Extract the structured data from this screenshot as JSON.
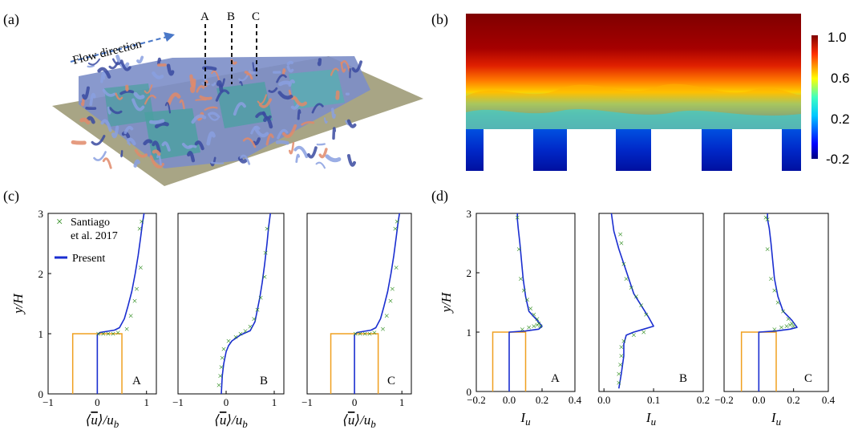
{
  "panels": {
    "a": {
      "label": "(a)",
      "flow_label": "Flow direction",
      "sections": [
        "A",
        "B",
        "C"
      ]
    },
    "b": {
      "label": "(b)",
      "colorbar": {
        "ticks": [
          "1.0",
          "0.6",
          "0.2",
          "-0.2"
        ],
        "min": -0.2,
        "max": 1.0
      }
    },
    "c": {
      "label": "(c)"
    },
    "d": {
      "label": "(d)"
    }
  },
  "legend": {
    "exp_line1": "Santiago",
    "exp_line2": "et al. 2017",
    "sim": "Present"
  },
  "colors": {
    "experiment": "#2a8a1a",
    "simulation": "#1a2ed0",
    "building": "#f0a020",
    "arrow": "#4a78c8"
  },
  "chart_data": [
    {
      "type": "line",
      "panel": "c",
      "station": "A",
      "xlabel": "⟨ū⟩/u_b",
      "ylabel": "y/H",
      "xlim": [
        -1,
        1.2
      ],
      "ylim": [
        0,
        3
      ],
      "xticks": [
        "−1",
        "0",
        "1"
      ],
      "yticks": [
        "0",
        "1",
        "2",
        "3"
      ],
      "building": {
        "x": [
          -0.5,
          0.5
        ],
        "height": 1
      },
      "series": [
        {
          "name": "Present",
          "x": [
            0,
            0,
            0.05,
            0.2,
            0.35,
            0.45,
            0.55,
            0.62,
            0.7,
            0.77,
            0.83,
            0.88,
            0.92,
            0.95
          ],
          "y": [
            0,
            0.98,
            1.02,
            1.04,
            1.06,
            1.1,
            1.25,
            1.45,
            1.7,
            2.0,
            2.3,
            2.6,
            2.85,
            3.0
          ]
        },
        {
          "name": "Santiago et al. 2017",
          "x": [
            0.02,
            0.12,
            0.22,
            0.32,
            0.42,
            0.6,
            0.68,
            0.76,
            0.8,
            0.88,
            0.86,
            0.9
          ],
          "y": [
            1.0,
            1.0,
            1.0,
            1.0,
            1.02,
            1.08,
            1.3,
            1.55,
            1.75,
            2.1,
            2.75,
            2.87
          ]
        }
      ]
    },
    {
      "type": "line",
      "panel": "c",
      "station": "B",
      "xlabel": "⟨ū⟩/u_b",
      "ylabel": "",
      "xlim": [
        -1,
        1.2
      ],
      "ylim": [
        0,
        3
      ],
      "xticks": [
        "−1",
        "0",
        "1"
      ],
      "yticks": [],
      "series": [
        {
          "name": "Present",
          "x": [
            -0.1,
            -0.08,
            -0.05,
            0,
            0.05,
            0.12,
            0.3,
            0.5,
            0.6,
            0.65,
            0.7,
            0.75,
            0.8,
            0.85,
            0.88,
            0.92
          ],
          "y": [
            0,
            0.3,
            0.5,
            0.7,
            0.8,
            0.88,
            0.98,
            1.05,
            1.2,
            1.4,
            1.6,
            1.85,
            2.15,
            2.5,
            2.75,
            3.0
          ]
        },
        {
          "name": "Santiago et al. 2017",
          "x": [
            -0.15,
            -0.12,
            -0.1,
            -0.08,
            -0.05,
            0.05,
            0.2,
            0.3,
            0.4,
            0.5,
            0.58,
            0.65,
            0.72,
            0.8,
            0.82,
            0.85
          ],
          "y": [
            0.15,
            0.3,
            0.45,
            0.6,
            0.75,
            0.88,
            0.95,
            1.0,
            1.05,
            1.12,
            1.25,
            1.4,
            1.6,
            1.95,
            2.35,
            2.75
          ]
        }
      ]
    },
    {
      "type": "line",
      "panel": "c",
      "station": "C",
      "xlabel": "⟨ū⟩/u_b",
      "ylabel": "",
      "xlim": [
        -1,
        1.2
      ],
      "ylim": [
        0,
        3
      ],
      "xticks": [
        "−1",
        "0",
        "1"
      ],
      "yticks": [],
      "building": {
        "x": [
          -0.5,
          0.5
        ],
        "height": 1
      },
      "series": [
        {
          "name": "Present",
          "x": [
            0,
            0,
            0.05,
            0.2,
            0.35,
            0.45,
            0.55,
            0.62,
            0.7,
            0.77,
            0.83,
            0.88,
            0.92,
            0.95
          ],
          "y": [
            0,
            0.98,
            1.02,
            1.04,
            1.06,
            1.1,
            1.25,
            1.45,
            1.7,
            2.0,
            2.3,
            2.6,
            2.85,
            3.0
          ]
        },
        {
          "name": "Santiago et al. 2017",
          "x": [
            0.02,
            0.12,
            0.22,
            0.32,
            0.42,
            0.6,
            0.68,
            0.76,
            0.8,
            0.88,
            0.86,
            0.9
          ],
          "y": [
            1.0,
            1.0,
            1.0,
            1.0,
            1.02,
            1.08,
            1.3,
            1.55,
            1.75,
            2.1,
            2.75,
            2.87
          ]
        }
      ]
    },
    {
      "type": "line",
      "panel": "d",
      "station": "A",
      "xlabel": "I_u",
      "ylabel": "y/H",
      "xlim": [
        -0.2,
        0.4
      ],
      "ylim": [
        0,
        3
      ],
      "xticks": [
        "−0.2",
        "0.0",
        "0.2",
        "0.4"
      ],
      "yticks": [
        "0",
        "1",
        "2",
        "3"
      ],
      "building": {
        "x": [
          -0.1,
          0.1
        ],
        "height": 1
      },
      "series": [
        {
          "name": "Present",
          "x": [
            0,
            0,
            0.1,
            0.18,
            0.2,
            0.17,
            0.12,
            0.1,
            0.085,
            0.075,
            0.065,
            0.055,
            0.05,
            0.05
          ],
          "y": [
            0,
            1.0,
            1.02,
            1.05,
            1.1,
            1.2,
            1.35,
            1.6,
            1.9,
            2.2,
            2.5,
            2.75,
            2.9,
            3.0
          ]
        },
        {
          "name": "Santiago et al. 2017",
          "x": [
            0.08,
            0.12,
            0.15,
            0.17,
            0.18,
            0.19,
            0.17,
            0.15,
            0.13,
            0.11,
            0.09,
            0.07,
            0.06,
            0.05
          ],
          "y": [
            1.05,
            1.08,
            1.1,
            1.12,
            1.15,
            1.1,
            1.22,
            1.3,
            1.4,
            1.55,
            1.7,
            1.9,
            2.4,
            2.93
          ]
        }
      ]
    },
    {
      "type": "line",
      "panel": "d",
      "station": "B",
      "xlabel": "I_u",
      "ylabel": "",
      "xlim": [
        -0.01,
        0.2
      ],
      "ylim": [
        0,
        3
      ],
      "xticks": [
        "0.0",
        "0.1",
        "0.2"
      ],
      "yticks": [],
      "series": [
        {
          "name": "Present",
          "x": [
            0.03,
            0.035,
            0.04,
            0.04,
            0.045,
            0.06,
            0.08,
            0.1,
            0.09,
            0.075,
            0.06,
            0.05,
            0.04,
            0.03,
            0.02,
            0.015
          ],
          "y": [
            0.05,
            0.3,
            0.6,
            0.8,
            0.95,
            1.0,
            1.05,
            1.1,
            1.25,
            1.45,
            1.65,
            1.9,
            2.15,
            2.4,
            2.7,
            3.0
          ]
        },
        {
          "name": "Santiago et al. 2017",
          "x": [
            0.03,
            0.03,
            0.033,
            0.035,
            0.035,
            0.04,
            0.06,
            0.08,
            0.085,
            0.075,
            0.065,
            0.055,
            0.045,
            0.04,
            0.035,
            0.033
          ],
          "y": [
            0.15,
            0.3,
            0.45,
            0.6,
            0.75,
            0.85,
            0.95,
            1.0,
            1.3,
            1.45,
            1.6,
            1.75,
            1.9,
            2.15,
            2.5,
            2.65
          ]
        }
      ]
    },
    {
      "type": "line",
      "panel": "d",
      "station": "C",
      "xlabel": "I_u",
      "ylabel": "",
      "xlim": [
        -0.2,
        0.4
      ],
      "ylim": [
        0,
        3
      ],
      "xticks": [
        "−0.2",
        "0.0",
        "0.2",
        "0.4"
      ],
      "yticks": [],
      "building": {
        "x": [
          -0.1,
          0.1
        ],
        "height": 1
      },
      "series": [
        {
          "name": "Present",
          "x": [
            0,
            0,
            0.1,
            0.18,
            0.22,
            0.19,
            0.14,
            0.11,
            0.09,
            0.08,
            0.07,
            0.06,
            0.05,
            0.05
          ],
          "y": [
            0,
            1.0,
            1.02,
            1.05,
            1.08,
            1.2,
            1.35,
            1.6,
            1.9,
            2.2,
            2.5,
            2.75,
            2.9,
            3.0
          ]
        },
        {
          "name": "Santiago et al. 2017",
          "x": [
            0.09,
            0.13,
            0.16,
            0.18,
            0.19,
            0.2,
            0.17,
            0.14,
            0.11,
            0.09,
            0.07,
            0.05,
            0.05,
            0.04
          ],
          "y": [
            1.05,
            1.08,
            1.1,
            1.12,
            1.15,
            1.1,
            1.22,
            1.35,
            1.5,
            1.7,
            1.9,
            2.4,
            2.9,
            2.93
          ]
        }
      ]
    }
  ]
}
